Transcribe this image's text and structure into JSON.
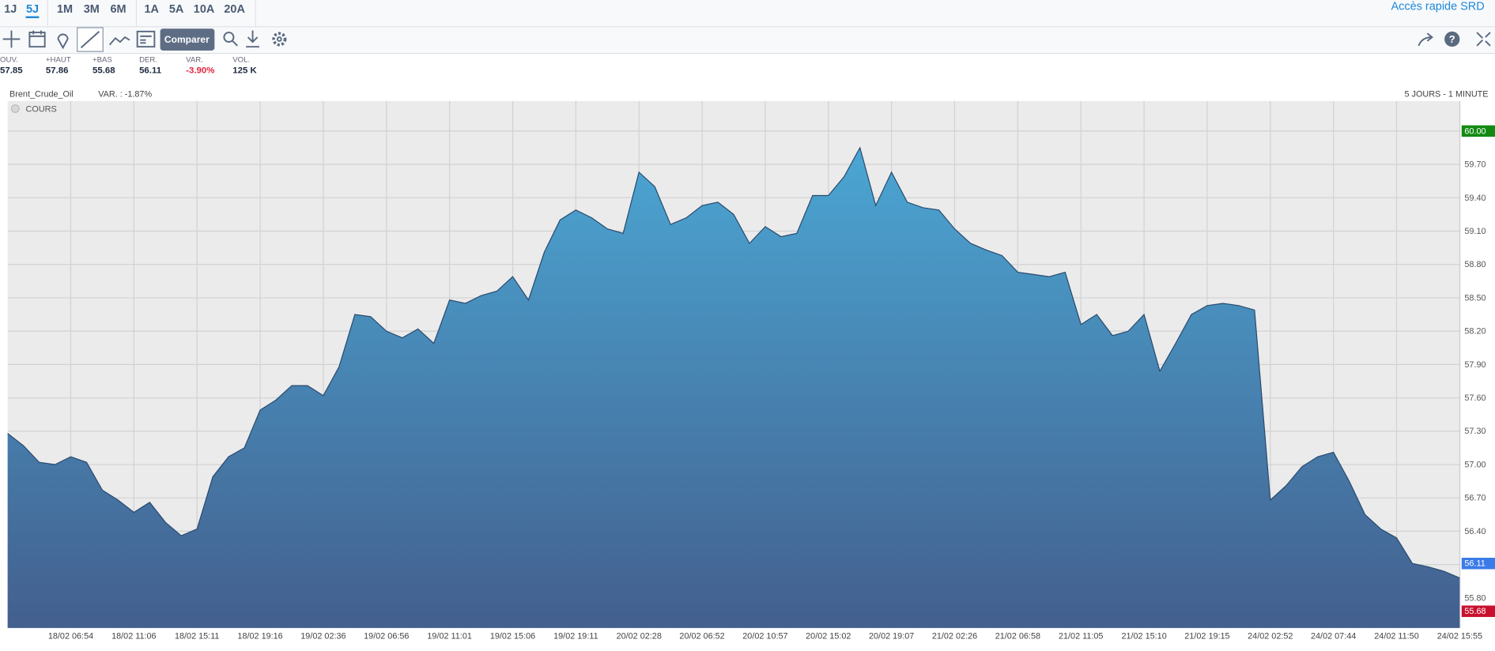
{
  "toolbar": {
    "periods": [
      "1J",
      "5J",
      "1M",
      "3M",
      "6M",
      "1A",
      "5A",
      "10A",
      "20A"
    ],
    "quick_access": "Accès rapide SRD",
    "compare_button": "Comparer",
    "stats": [
      {
        "label": "OUV.",
        "value": "57.85"
      },
      {
        "label": "+HAUT",
        "value": "57.86"
      },
      {
        "label": "+BAS",
        "value": "55.68"
      },
      {
        "label": "DER.",
        "value": "56.11"
      },
      {
        "label": "VAR.",
        "value": "-3.90%"
      },
      {
        "label": "VOL.",
        "value": "125 K"
      }
    ]
  },
  "chart_data": {
    "type": "area",
    "title": "Brent_Crude_Oil",
    "subtitle": "VAR. : -1.87%",
    "period_label": "5 JOURS - 1 MINUTE",
    "series_name": "COURS",
    "categories": [
      null,
      null,
      null,
      null,
      "18/02 06:54",
      null,
      null,
      null,
      "18/02 11:06",
      null,
      null,
      null,
      "18/02 15:11",
      null,
      null,
      null,
      "18/02 19:16",
      null,
      null,
      null,
      "19/02 02:36",
      null,
      null,
      null,
      "19/02 06:56",
      null,
      null,
      null,
      "19/02 11:01",
      null,
      null,
      null,
      "19/02 15:06",
      null,
      null,
      null,
      "19/02 19:11",
      null,
      null,
      null,
      "20/02 02:28",
      null,
      null,
      null,
      "20/02 06:52",
      null,
      null,
      null,
      "20/02 10:57",
      null,
      null,
      null,
      "20/02 15:02",
      null,
      null,
      null,
      "20/02 19:07",
      null,
      null,
      null,
      "21/02 02:26",
      null,
      null,
      null,
      "21/02 06:58",
      null,
      null,
      null,
      "21/02 11:05",
      null,
      null,
      null,
      "21/02 15:10",
      null,
      null,
      null,
      "21/02 19:15",
      null,
      null,
      null,
      "24/02 02:52",
      null,
      null,
      null,
      "24/02 07:44",
      null,
      null,
      null,
      "24/02 11:50",
      null,
      null,
      null,
      "24/02 15:55"
    ],
    "values": [
      57.28,
      57.17,
      57.02,
      57.0,
      57.07,
      57.02,
      56.77,
      56.68,
      56.57,
      56.66,
      56.48,
      56.36,
      56.42,
      56.89,
      57.07,
      57.15,
      57.49,
      57.58,
      57.71,
      57.71,
      57.62,
      57.88,
      58.35,
      58.33,
      58.2,
      58.14,
      58.22,
      58.09,
      58.48,
      58.45,
      58.52,
      58.56,
      58.69,
      58.48,
      58.91,
      59.2,
      59.29,
      59.22,
      59.12,
      59.08,
      59.63,
      59.5,
      59.16,
      59.22,
      59.33,
      59.36,
      59.25,
      58.99,
      59.14,
      59.05,
      59.08,
      59.42,
      59.42,
      59.59,
      59.85,
      59.33,
      59.63,
      59.36,
      59.31,
      59.29,
      59.12,
      58.99,
      58.93,
      58.88,
      58.73,
      58.71,
      58.69,
      58.73,
      58.26,
      58.35,
      58.16,
      58.2,
      58.35,
      57.84,
      58.09,
      58.35,
      58.43,
      58.45,
      58.43,
      58.39,
      56.68,
      56.81,
      56.98,
      57.07,
      57.11,
      56.85,
      56.55,
      56.42,
      56.34,
      56.11,
      56.08,
      56.04,
      55.98
    ],
    "color_top": "#4ba6d3",
    "color_bottom": "#435f8e",
    "line_color": "#2a4a6e",
    "ylim": [
      55.53,
      60.27
    ],
    "yticks": [
      {
        "value": 55.8,
        "label": "55.80"
      },
      {
        "value": 56.1,
        "label": "56.10"
      },
      {
        "value": 56.4,
        "label": "56.40"
      },
      {
        "value": 56.7,
        "label": "56.70"
      },
      {
        "value": 57.0,
        "label": "57.00"
      },
      {
        "value": 57.3,
        "label": "57.30"
      },
      {
        "value": 57.6,
        "label": "57.60"
      },
      {
        "value": 57.9,
        "label": "57.90"
      },
      {
        "value": 58.2,
        "label": "58.20"
      },
      {
        "value": 58.5,
        "label": "58.50"
      },
      {
        "value": 58.8,
        "label": "58.80"
      },
      {
        "value": 59.1,
        "label": "59.10"
      },
      {
        "value": 59.4,
        "label": "59.40"
      },
      {
        "value": 59.7,
        "label": "59.70"
      },
      {
        "value": 60.0,
        "label": "60.00"
      }
    ],
    "top_tick_color": "#128a12",
    "markers": [
      {
        "value": 56.11,
        "color": "#3b7be8"
      },
      {
        "value": 55.68,
        "color": "#c8102e"
      }
    ],
    "grid": true
  }
}
